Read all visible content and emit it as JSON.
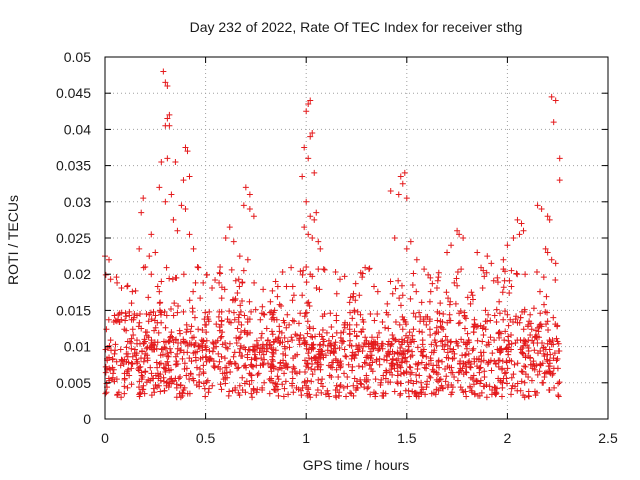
{
  "colors": {
    "series": "#e41a1c",
    "axis": "#000000",
    "grid": "#a0a0a0"
  },
  "chart_data": {
    "type": "scatter",
    "title": "Day 232 of 2022, Rate Of TEC Index for receiver sthg",
    "xlabel": "GPS time / hours",
    "ylabel": "ROTI / TECUs",
    "xlim": [
      0,
      2.5
    ],
    "ylim": [
      0,
      0.05
    ],
    "grid": true,
    "legend": "none",
    "marker": "plus",
    "x_ticks": [
      0,
      0.5,
      1,
      1.5,
      2,
      2.5
    ],
    "x_tick_labels": [
      "0",
      "0.5",
      "1",
      "1.5",
      "2",
      "2.5"
    ],
    "y_ticks": [
      0,
      0.005,
      0.01,
      0.015,
      0.02,
      0.025,
      0.03,
      0.035,
      0.04,
      0.045,
      0.05
    ],
    "y_tick_labels": [
      "0",
      "0.005",
      "0.01",
      "0.015",
      "0.02",
      "0.025",
      "0.03",
      "0.035",
      "0.04",
      "0.045",
      "0.05"
    ],
    "series": [
      {
        "name": "ROTI",
        "points": [
          [
            0.29,
            0.048
          ],
          [
            0.3,
            0.0465
          ],
          [
            0.31,
            0.046
          ],
          [
            0.32,
            0.042
          ],
          [
            0.31,
            0.0415
          ],
          [
            0.3,
            0.0405
          ],
          [
            0.32,
            0.0405
          ],
          [
            0.4,
            0.0375
          ],
          [
            0.41,
            0.037
          ],
          [
            0.39,
            0.033
          ],
          [
            0.42,
            0.0335
          ],
          [
            0.28,
            0.0355
          ],
          [
            0.31,
            0.036
          ],
          [
            0.35,
            0.0355
          ],
          [
            0.27,
            0.032
          ],
          [
            0.3,
            0.03
          ],
          [
            0.33,
            0.031
          ],
          [
            0.38,
            0.0295
          ],
          [
            0.4,
            0.029
          ],
          [
            0.34,
            0.0275
          ],
          [
            0.36,
            0.026
          ],
          [
            0.23,
            0.0255
          ],
          [
            0.25,
            0.023
          ],
          [
            0.22,
            0.0225
          ],
          [
            0.19,
            0.0305
          ],
          [
            0.18,
            0.0285
          ],
          [
            0.17,
            0.0235
          ],
          [
            0.2,
            0.021
          ],
          [
            0.0,
            0.0225
          ],
          [
            0.02,
            0.022
          ],
          [
            0.42,
            0.0255
          ],
          [
            0.44,
            0.0235
          ],
          [
            0.46,
            0.021
          ],
          [
            1.01,
            0.0435
          ],
          [
            1.02,
            0.044
          ],
          [
            1.0,
            0.0425
          ],
          [
            0.99,
            0.0375
          ],
          [
            1.02,
            0.039
          ],
          [
            1.03,
            0.0395
          ],
          [
            1.01,
            0.036
          ],
          [
            1.04,
            0.034
          ],
          [
            0.98,
            0.0335
          ],
          [
            1.0,
            0.03
          ],
          [
            1.02,
            0.028
          ],
          [
            1.05,
            0.0285
          ],
          [
            1.04,
            0.0275
          ],
          [
            0.99,
            0.0265
          ],
          [
            1.01,
            0.0255
          ],
          [
            1.03,
            0.025
          ],
          [
            1.06,
            0.0245
          ],
          [
            1.07,
            0.0235
          ],
          [
            1.0,
            0.021
          ],
          [
            1.02,
            0.02
          ],
          [
            0.7,
            0.032
          ],
          [
            0.72,
            0.031
          ],
          [
            0.69,
            0.0295
          ],
          [
            0.72,
            0.029
          ],
          [
            0.74,
            0.028
          ],
          [
            0.62,
            0.0265
          ],
          [
            0.6,
            0.025
          ],
          [
            0.64,
            0.0245
          ],
          [
            0.67,
            0.0225
          ],
          [
            0.71,
            0.022
          ],
          [
            1.47,
            0.0335
          ],
          [
            1.49,
            0.034
          ],
          [
            1.48,
            0.0325
          ],
          [
            1.46,
            0.031
          ],
          [
            1.5,
            0.0305
          ],
          [
            1.42,
            0.0315
          ],
          [
            1.44,
            0.025
          ],
          [
            1.5,
            0.0235
          ],
          [
            1.52,
            0.0245
          ],
          [
            1.55,
            0.022
          ],
          [
            1.75,
            0.026
          ],
          [
            1.76,
            0.0255
          ],
          [
            1.78,
            0.025
          ],
          [
            1.72,
            0.024
          ],
          [
            1.7,
            0.023
          ],
          [
            2.22,
            0.0445
          ],
          [
            2.24,
            0.044
          ],
          [
            2.23,
            0.041
          ],
          [
            2.26,
            0.036
          ],
          [
            2.26,
            0.033
          ],
          [
            2.2,
            0.028
          ],
          [
            2.21,
            0.0275
          ],
          [
            2.15,
            0.0295
          ],
          [
            2.17,
            0.029
          ],
          [
            2.05,
            0.0275
          ],
          [
            2.07,
            0.027
          ],
          [
            2.08,
            0.026
          ],
          [
            2.06,
            0.0255
          ],
          [
            2.03,
            0.025
          ],
          [
            2.0,
            0.024
          ],
          [
            2.19,
            0.0235
          ],
          [
            2.2,
            0.023
          ],
          [
            2.22,
            0.022
          ],
          [
            2.24,
            0.0215
          ],
          [
            1.9,
            0.0225
          ],
          [
            1.92,
            0.0215
          ],
          [
            1.85,
            0.023
          ],
          [
            1.88,
            0.0205
          ],
          [
            1.95,
            0.0195
          ],
          [
            1.98,
            0.022
          ],
          [
            2.02,
            0.0205
          ]
        ]
      }
    ]
  }
}
